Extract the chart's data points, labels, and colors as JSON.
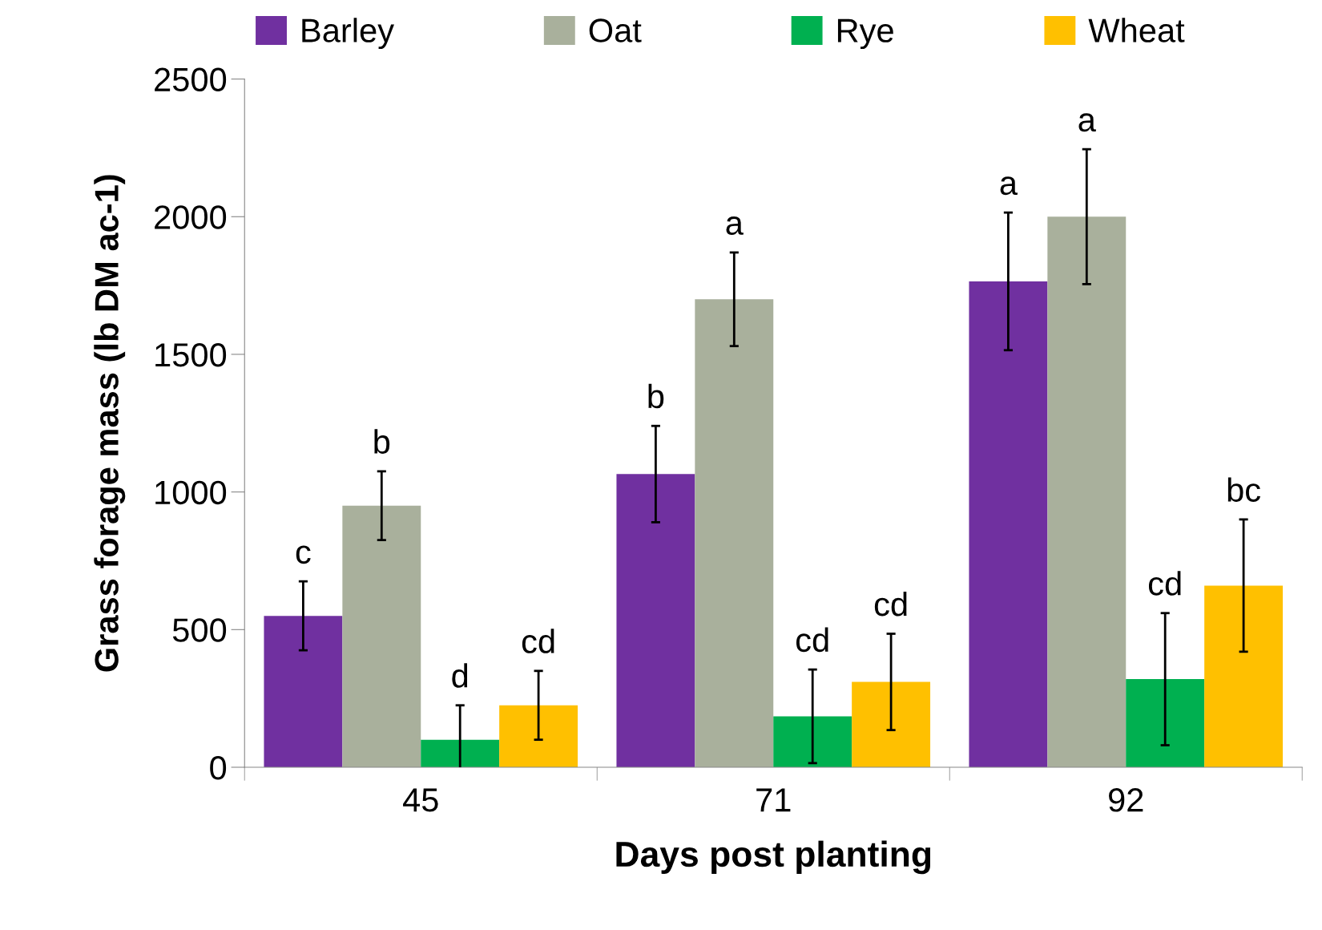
{
  "chart_data": {
    "type": "bar",
    "xlabel": "Days post planting",
    "ylabel": "Grass forage mass (lb DM ac-1)",
    "categories": [
      "45",
      "71",
      "92"
    ],
    "ylim": [
      0,
      2500
    ],
    "yticks": [
      0,
      500,
      1000,
      1500,
      2000,
      2500
    ],
    "grid": false,
    "legend": "top",
    "series": [
      {
        "name": "Barley",
        "color": "#7030a0",
        "values": [
          550,
          1065,
          1765
        ],
        "errors": [
          125,
          175,
          250
        ],
        "value_labels": [
          "c",
          "b",
          "a"
        ]
      },
      {
        "name": "Oat",
        "color": "#a9b09c",
        "values": [
          950,
          1700,
          2000
        ],
        "errors": [
          125,
          170,
          245
        ],
        "value_labels": [
          "b",
          "a",
          "a"
        ]
      },
      {
        "name": "Rye",
        "color": "#00b050",
        "values": [
          100,
          185,
          320
        ],
        "errors": [
          125,
          170,
          240
        ],
        "value_labels": [
          "d",
          "cd",
          "cd"
        ]
      },
      {
        "name": "Wheat",
        "color": "#ffc000",
        "values": [
          225,
          310,
          660
        ],
        "errors": [
          125,
          175,
          240
        ],
        "value_labels": [
          "cd",
          "cd",
          "bc"
        ]
      }
    ]
  }
}
